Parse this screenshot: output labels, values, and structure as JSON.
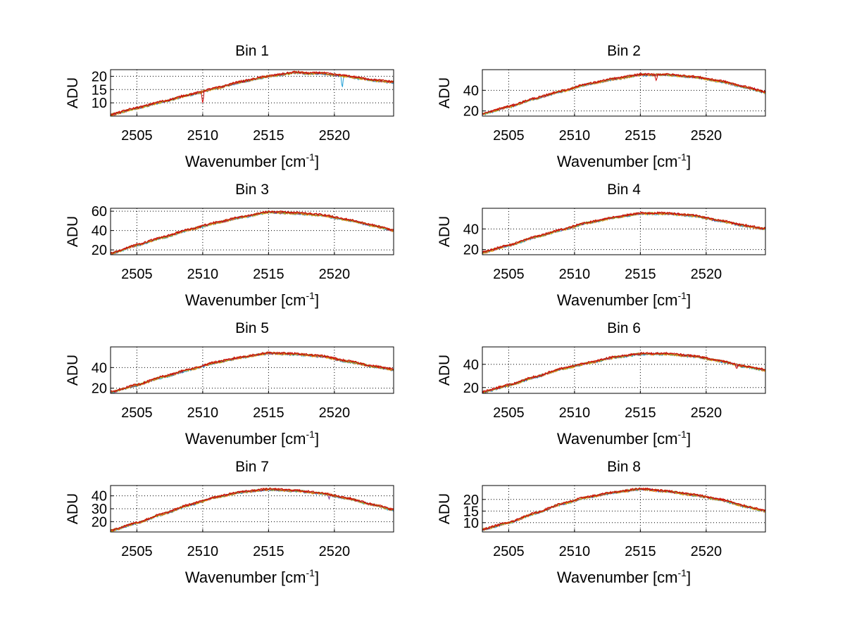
{
  "figure": {
    "background": "#ffffff",
    "series_colors": [
      "#1f9fd6",
      "#ff7f0e",
      "#e3b505",
      "#7e2f8e",
      "#77ac30",
      "#d95319",
      "#cc0000"
    ]
  },
  "chart_data": [
    {
      "type": "line",
      "title": "Bin 1",
      "xlabel": "Wavenumber [cm",
      "xlabel_sup": "-1",
      "xlabel_end": "]",
      "ylabel": "ADU",
      "xlim": [
        2503,
        2524.5
      ],
      "ylim": [
        5,
        22.5
      ],
      "xticks": [
        2505,
        2510,
        2515,
        2520
      ],
      "yticks": [
        10,
        15,
        20
      ],
      "grid": true,
      "x": [
        2503,
        2505,
        2507,
        2509,
        2511,
        2513,
        2515,
        2516.5,
        2517,
        2518,
        2519,
        2520,
        2521,
        2522,
        2523,
        2524.5
      ],
      "y": [
        5.5,
        8.0,
        10.5,
        13.0,
        15.5,
        18.0,
        20.0,
        21.0,
        21.5,
        21.0,
        21.2,
        20.5,
        20.0,
        19.2,
        18.5,
        17.8
      ],
      "dips": [
        [
          2510.0,
          4.5,
          "#cc0000"
        ],
        [
          2520.6,
          4.0,
          "#1f9fd6"
        ]
      ]
    },
    {
      "type": "line",
      "title": "Bin 2",
      "xlabel": "Wavenumber [cm",
      "xlabel_sup": "-1",
      "xlabel_end": "]",
      "ylabel": "ADU",
      "xlim": [
        2503,
        2524.5
      ],
      "ylim": [
        15,
        60
      ],
      "xticks": [
        2505,
        2510,
        2515,
        2520
      ],
      "yticks": [
        20,
        40
      ],
      "grid": true,
      "x": [
        2503,
        2505,
        2507,
        2509,
        2511,
        2513,
        2515,
        2517,
        2519,
        2521,
        2523,
        2524.5
      ],
      "y": [
        17,
        24,
        32,
        39,
        46,
        51,
        55,
        55,
        53,
        49,
        43,
        38
      ],
      "dips": [
        [
          2516.2,
          6,
          "#cc0000"
        ]
      ]
    },
    {
      "type": "line",
      "title": "Bin 3",
      "xlabel": "Wavenumber [cm",
      "xlabel_sup": "-1",
      "xlabel_end": "]",
      "ylabel": "ADU",
      "xlim": [
        2503,
        2524.5
      ],
      "ylim": [
        15,
        63
      ],
      "xticks": [
        2505,
        2510,
        2515,
        2520
      ],
      "yticks": [
        20,
        40,
        60
      ],
      "grid": true,
      "x": [
        2503,
        2505,
        2507,
        2509,
        2511,
        2513,
        2515,
        2517,
        2519,
        2521,
        2523,
        2524.5
      ],
      "y": [
        16,
        25,
        33,
        41,
        48,
        54,
        59,
        58,
        56,
        51,
        45,
        40
      ],
      "dips": []
    },
    {
      "type": "line",
      "title": "Bin 4",
      "xlabel": "Wavenumber [cm",
      "xlabel_sup": "-1",
      "xlabel_end": "]",
      "ylabel": "ADU",
      "xlim": [
        2503,
        2524.5
      ],
      "ylim": [
        15,
        60
      ],
      "xticks": [
        2505,
        2510,
        2515,
        2520
      ],
      "yticks": [
        20,
        40
      ],
      "grid": true,
      "x": [
        2503,
        2505,
        2507,
        2509,
        2511,
        2513,
        2515,
        2517,
        2519,
        2521,
        2523,
        2524.5
      ],
      "y": [
        17,
        24,
        32,
        39,
        46,
        51,
        55,
        55,
        53,
        48,
        43,
        40
      ],
      "dips": []
    },
    {
      "type": "line",
      "title": "Bin 5",
      "xlabel": "Wavenumber [cm",
      "xlabel_sup": "-1",
      "xlabel_end": "]",
      "ylabel": "ADU",
      "xlim": [
        2503,
        2524.5
      ],
      "ylim": [
        15,
        60
      ],
      "xticks": [
        2505,
        2510,
        2515,
        2520
      ],
      "yticks": [
        20,
        40
      ],
      "grid": true,
      "x": [
        2503,
        2505,
        2507,
        2509,
        2511,
        2513,
        2515,
        2517,
        2519,
        2521,
        2523,
        2524.5
      ],
      "y": [
        16,
        23,
        31,
        38,
        45,
        50,
        54,
        53,
        51,
        46,
        41,
        38
      ],
      "dips": []
    },
    {
      "type": "line",
      "title": "Bin 6",
      "xlabel": "Wavenumber [cm",
      "xlabel_sup": "-1",
      "xlabel_end": "]",
      "ylabel": "ADU",
      "xlim": [
        2503,
        2524.5
      ],
      "ylim": [
        15,
        55
      ],
      "xticks": [
        2505,
        2510,
        2515,
        2520
      ],
      "yticks": [
        20,
        40
      ],
      "grid": true,
      "x": [
        2503,
        2505,
        2507,
        2509,
        2511,
        2513,
        2515,
        2517,
        2519,
        2521,
        2523,
        2524.5
      ],
      "y": [
        16,
        22,
        29,
        36,
        41,
        46,
        49,
        49,
        47,
        43,
        38,
        35
      ],
      "dips": [
        [
          2522.3,
          4,
          "#cc0000"
        ]
      ]
    },
    {
      "type": "line",
      "title": "Bin 7",
      "xlabel": "Wavenumber [cm",
      "xlabel_sup": "-1",
      "xlabel_end": "]",
      "ylabel": "ADU",
      "xlim": [
        2503,
        2524.5
      ],
      "ylim": [
        12,
        48
      ],
      "xticks": [
        2505,
        2510,
        2515,
        2520
      ],
      "yticks": [
        20,
        30,
        40
      ],
      "grid": true,
      "x": [
        2503,
        2505,
        2507,
        2509,
        2511,
        2513,
        2515,
        2517,
        2519,
        2521,
        2523,
        2524.5
      ],
      "y": [
        13,
        19,
        26,
        33,
        39,
        43,
        45,
        44,
        42,
        38,
        33,
        29
      ],
      "dips": [
        [
          2519.6,
          3,
          "#7e2f8e"
        ]
      ]
    },
    {
      "type": "line",
      "title": "Bin 8",
      "xlabel": "Wavenumber [cm",
      "xlabel_sup": "-1",
      "xlabel_end": "]",
      "ylabel": "ADU",
      "xlim": [
        2503,
        2524.5
      ],
      "ylim": [
        6,
        26
      ],
      "xticks": [
        2505,
        2510,
        2515,
        2520
      ],
      "yticks": [
        10,
        15,
        20
      ],
      "grid": true,
      "x": [
        2503,
        2505,
        2507,
        2509,
        2511,
        2513,
        2515,
        2517,
        2519,
        2521,
        2523,
        2524.5
      ],
      "y": [
        7,
        10,
        14,
        18,
        21,
        23,
        24.5,
        23.5,
        22,
        20,
        17,
        15
      ],
      "dips": []
    }
  ]
}
